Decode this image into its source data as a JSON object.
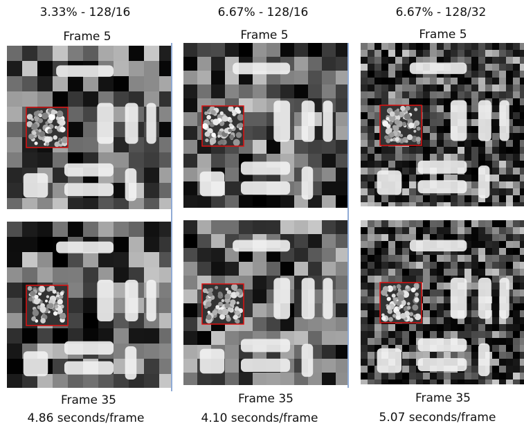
{
  "columns": [
    {
      "header": "3.33% - 128/16",
      "top_label": "Frame 5",
      "bottom_label": "Frame 35",
      "timing": "4.86 seconds/frame"
    },
    {
      "header": "6.67% - 128/16",
      "top_label": "Frame 5",
      "bottom_label": "Frame 35",
      "timing": "4.10 seconds/frame"
    },
    {
      "header": "6.67% - 128/32",
      "top_label": "Frame 5",
      "bottom_label": "Frame 35",
      "timing": "5.07 seconds/frame"
    }
  ]
}
